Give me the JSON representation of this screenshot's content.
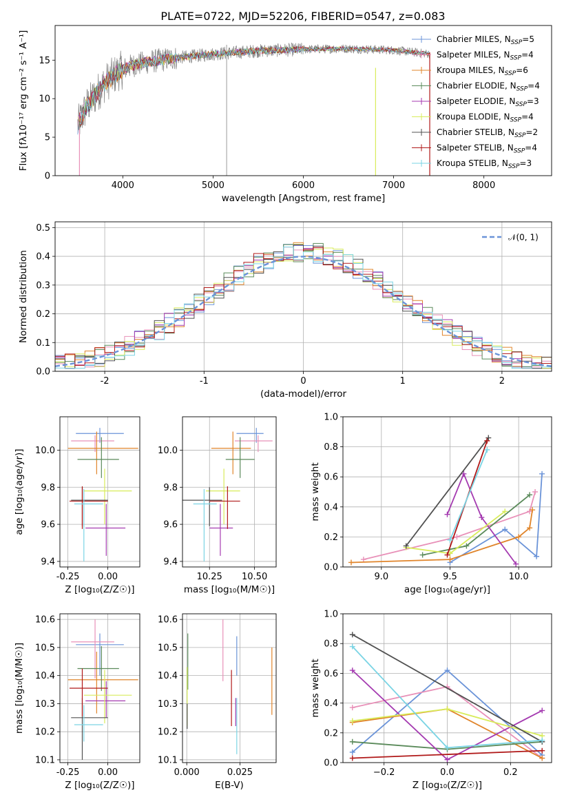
{
  "figure_title": "PLATE=0722, MJD=52206, FIBERID=0547, z=0.083",
  "colors": {
    "Chabrier MILES": "#6a93d8",
    "Salpeter MILES": "#e890b8",
    "Kroupa MILES": "#e0842a",
    "Chabrier ELODIE": "#5a8a5a",
    "Salpeter ELODIE": "#a43ab0",
    "Kroupa ELODIE": "#d8ec5a",
    "Chabrier STELIB": "#505050",
    "Salpeter STELIB": "#b01818",
    "Kroupa STELIB": "#7ad4e4",
    "data": "#808080",
    "normal": "#6a93d8"
  },
  "chart_data": [
    {
      "id": "spectrum",
      "type": "line",
      "title": "PLATE=0722, MJD=52206, FIBERID=0547, z=0.083",
      "xlabel": "wavelength [Angstrom, rest frame]",
      "ylabel": "Flux [fλ10⁻¹⁷ erg cm⁻² s⁻¹ A⁻¹]",
      "xlim": [
        3250,
        8750
      ],
      "ylim": [
        0,
        19.5
      ],
      "xticks": [
        4000,
        5000,
        6000,
        7000,
        8000
      ],
      "yticks": [
        0,
        5,
        10,
        15
      ],
      "legend_loc": "upper right",
      "legend": [
        "Chabrier MILES, N_SSP=5",
        "Salpeter MILES, N_SSP=4",
        "Kroupa MILES, N_SSP=6",
        "Chabrier ELODIE, N_SSP=4",
        "Salpeter ELODIE, N_SSP=3",
        "Kroupa ELODIE, N_SSP=4",
        "Chabrier STELIB, N_SSP=2",
        "Salpeter STELIB, N_SSP=4",
        "Kroupa STELIB, N_SSP=3"
      ],
      "continuum": [
        [
          3500,
          6.5
        ],
        [
          3600,
          9
        ],
        [
          3800,
          12
        ],
        [
          3950,
          13.5
        ],
        [
          4100,
          14.3
        ],
        [
          4300,
          14.8
        ],
        [
          4600,
          15.3
        ],
        [
          5000,
          15.8
        ],
        [
          5500,
          16.2
        ],
        [
          6000,
          16.4
        ],
        [
          6500,
          16.5
        ],
        [
          7000,
          16.3
        ],
        [
          7400,
          15.8
        ]
      ]
    },
    {
      "id": "residuals",
      "type": "histogram",
      "xlabel": "(data-model)/error",
      "ylabel": "Normed distribution",
      "xlim": [
        -2.5,
        2.5
      ],
      "ylim": [
        0,
        0.52
      ],
      "xticks": [
        -2,
        -1,
        0,
        1,
        2
      ],
      "yticks": [
        0.0,
        0.1,
        0.2,
        0.3,
        0.4,
        0.5
      ],
      "grid": true,
      "legend_loc": "upper right",
      "legend": [
        "𝒩(0, 1)"
      ],
      "bin_width": 0.1
    },
    {
      "id": "age-vs-Z",
      "type": "errorbar",
      "xlabel": "Z [log₁₀(Z/Z☉)]",
      "ylabel": "age  [log₁₀(age/yr)]",
      "xlim": [
        -0.3,
        0.2
      ],
      "ylim": [
        9.37,
        10.18
      ],
      "xticks": [
        -0.25,
        0.0
      ],
      "yticks": [
        9.4,
        9.6,
        9.8,
        10.0
      ],
      "points": [
        {
          "model": "Chabrier MILES",
          "x": -0.05,
          "xerr": [
            0.15,
            0.15
          ],
          "y": 10.09,
          "yerr": [
            0.05,
            0.03
          ]
        },
        {
          "model": "Salpeter MILES",
          "x": -0.08,
          "xerr": [
            0.15,
            0.12
          ],
          "y": 10.05,
          "yerr": [
            0.06,
            0.03
          ]
        },
        {
          "model": "Kroupa MILES",
          "x": -0.07,
          "xerr": [
            0.18,
            0.26
          ],
          "y": 10.01,
          "yerr": [
            0.14,
            0.09
          ]
        },
        {
          "model": "Chabrier ELODIE",
          "x": -0.04,
          "xerr": [
            0.15,
            0.11
          ],
          "y": 9.95,
          "yerr": [
            0.1,
            0.12
          ]
        },
        {
          "model": "Salpeter ELODIE",
          "x": -0.01,
          "xerr": [
            0.13,
            0.12
          ],
          "y": 9.58,
          "yerr": [
            0.15,
            0.13
          ]
        },
        {
          "model": "Kroupa ELODIE",
          "x": -0.02,
          "xerr": [
            0.13,
            0.17
          ],
          "y": 9.78,
          "yerr": [
            0.18,
            0.12
          ]
        },
        {
          "model": "Chabrier STELIB",
          "x": -0.16,
          "xerr": [
            0.07,
            0.16
          ],
          "y": 9.73,
          "yerr": [
            0.14,
            0.07
          ]
        },
        {
          "model": "Salpeter STELIB",
          "x": -0.16,
          "xerr": [
            0.08,
            0.16
          ],
          "y": 9.725,
          "yerr": [
            0.15,
            0.08
          ]
        },
        {
          "model": "Kroupa STELIB",
          "x": -0.15,
          "xerr": [
            0.06,
            0.12
          ],
          "y": 9.71,
          "yerr": [
            0.31,
            0.08
          ]
        }
      ]
    },
    {
      "id": "age-vs-mass",
      "type": "errorbar",
      "xlabel": "mass [log₁₀(M/M☉)]",
      "ylabel": "",
      "xlim": [
        10.1,
        10.62
      ],
      "ylim": [
        9.37,
        10.18
      ],
      "xticks": [
        10.25,
        10.5
      ],
      "yticks": [
        9.4,
        9.6,
        9.8,
        10.0
      ],
      "points": [
        {
          "model": "Chabrier MILES",
          "x": 10.51,
          "xerr": [
            0.11,
            0.04
          ],
          "y": 10.09,
          "yerr": [
            0.05,
            0.03
          ]
        },
        {
          "model": "Salpeter MILES",
          "x": 10.52,
          "xerr": [
            0.13,
            0.08
          ],
          "y": 10.05,
          "yerr": [
            0.06,
            0.03
          ]
        },
        {
          "model": "Kroupa MILES",
          "x": 10.38,
          "xerr": [
            0.12,
            0.1
          ],
          "y": 10.01,
          "yerr": [
            0.14,
            0.09
          ]
        },
        {
          "model": "Chabrier ELODIE",
          "x": 10.42,
          "xerr": [
            0.08,
            0.08
          ],
          "y": 9.95,
          "yerr": [
            0.1,
            0.12
          ]
        },
        {
          "model": "Salpeter ELODIE",
          "x": 10.31,
          "xerr": [
            0.06,
            0.07
          ],
          "y": 9.58,
          "yerr": [
            0.15,
            0.13
          ]
        },
        {
          "model": "Kroupa ELODIE",
          "x": 10.33,
          "xerr": [
            0.1,
            0.09
          ],
          "y": 9.78,
          "yerr": [
            0.18,
            0.12
          ]
        },
        {
          "model": "Chabrier STELIB",
          "x": 10.25,
          "xerr": [
            0.15,
            0.07
          ],
          "y": 9.73,
          "yerr": [
            0.14,
            0.07
          ]
        },
        {
          "model": "Salpeter STELIB",
          "x": 10.35,
          "xerr": [
            0.1,
            0.07
          ],
          "y": 9.725,
          "yerr": [
            0.15,
            0.08
          ]
        },
        {
          "model": "Kroupa STELIB",
          "x": 10.22,
          "xerr": [
            0.06,
            0.07
          ],
          "y": 9.71,
          "yerr": [
            0.31,
            0.08
          ]
        }
      ]
    },
    {
      "id": "weight-vs-age",
      "type": "line",
      "xlabel": "age  [log₁₀(age/yr)]",
      "ylabel": "mass weight",
      "xlim": [
        8.72,
        10.24
      ],
      "ylim": [
        0,
        1
      ],
      "xticks": [
        9.0,
        9.5,
        10.0
      ],
      "yticks": [
        0.0,
        0.2,
        0.4,
        0.6,
        0.8,
        1.0
      ],
      "grid": true,
      "series": [
        {
          "model": "Chabrier MILES",
          "x": [
            9.5,
            9.9,
            10.13,
            10.17
          ],
          "y": [
            0.03,
            0.25,
            0.07,
            0.62
          ]
        },
        {
          "model": "Salpeter MILES",
          "x": [
            8.87,
            9.55,
            10.08,
            10.12
          ],
          "y": [
            0.05,
            0.2,
            0.37,
            0.5
          ]
        },
        {
          "model": "Kroupa MILES",
          "x": [
            8.78,
            9.5,
            10.0,
            10.08,
            10.1
          ],
          "y": [
            0.03,
            0.05,
            0.2,
            0.26,
            0.38
          ]
        },
        {
          "model": "Chabrier ELODIE",
          "x": [
            9.3,
            9.62,
            10.08
          ],
          "y": [
            0.08,
            0.14,
            0.48
          ]
        },
        {
          "model": "Salpeter ELODIE",
          "x": [
            9.48,
            9.6,
            9.73,
            9.98
          ],
          "y": [
            0.35,
            0.62,
            0.33,
            0.02
          ]
        },
        {
          "model": "Kroupa ELODIE",
          "x": [
            9.18,
            9.5,
            9.9
          ],
          "y": [
            0.13,
            0.09,
            0.37
          ]
        },
        {
          "model": "Chabrier STELIB",
          "x": [
            9.18,
            9.78
          ],
          "y": [
            0.14,
            0.86
          ]
        },
        {
          "model": "Salpeter STELIB",
          "x": [
            9.48,
            9.77
          ],
          "y": [
            0.08,
            0.84
          ]
        },
        {
          "model": "Kroupa STELIB",
          "x": [
            9.5,
            9.77
          ],
          "y": [
            0.18,
            0.78
          ]
        }
      ]
    },
    {
      "id": "mass-vs-Z",
      "type": "errorbar",
      "xlabel": "Z [log₁₀(Z/Z☉)]",
      "ylabel": "mass [log₁₀(M/M☉)]",
      "xlim": [
        -0.3,
        0.2
      ],
      "ylim": [
        10.09,
        10.62
      ],
      "xticks": [
        -0.25,
        0.0
      ],
      "yticks": [
        10.1,
        10.2,
        10.3,
        10.4,
        10.5,
        10.6
      ],
      "points": [
        {
          "model": "Chabrier MILES",
          "x": -0.05,
          "xerr": [
            0.15,
            0.15
          ],
          "y": 10.51,
          "yerr": [
            0.11,
            0.04
          ]
        },
        {
          "model": "Salpeter MILES",
          "x": -0.08,
          "xerr": [
            0.15,
            0.12
          ],
          "y": 10.52,
          "yerr": [
            0.13,
            0.08
          ]
        },
        {
          "model": "Kroupa MILES",
          "x": -0.07,
          "xerr": [
            0.18,
            0.26
          ],
          "y": 10.385,
          "yerr": [
            0.12,
            0.1
          ]
        },
        {
          "model": "Chabrier ELODIE",
          "x": -0.04,
          "xerr": [
            0.15,
            0.11
          ],
          "y": 10.425,
          "yerr": [
            0.08,
            0.08
          ]
        },
        {
          "model": "Salpeter ELODIE",
          "x": -0.01,
          "xerr": [
            0.13,
            0.12
          ],
          "y": 10.31,
          "yerr": [
            0.06,
            0.07
          ]
        },
        {
          "model": "Kroupa ELODIE",
          "x": -0.02,
          "xerr": [
            0.13,
            0.17
          ],
          "y": 10.33,
          "yerr": [
            0.1,
            0.09
          ]
        },
        {
          "model": "Chabrier STELIB",
          "x": -0.16,
          "xerr": [
            0.07,
            0.16
          ],
          "y": 10.25,
          "yerr": [
            0.15,
            0.07
          ]
        },
        {
          "model": "Salpeter STELIB",
          "x": -0.16,
          "xerr": [
            0.08,
            0.16
          ],
          "y": 10.355,
          "yerr": [
            0.1,
            0.07
          ]
        },
        {
          "model": "Kroupa STELIB",
          "x": -0.15,
          "xerr": [
            0.06,
            0.12
          ],
          "y": 10.225,
          "yerr": [
            0.06,
            0.07
          ]
        }
      ]
    },
    {
      "id": "mass-vs-EBV",
      "type": "errorbar",
      "xlabel": "E(B-V)",
      "ylabel": "",
      "xlim": [
        -0.002,
        0.042
      ],
      "ylim": [
        10.09,
        10.62
      ],
      "xticks": [
        0.0,
        0.025
      ],
      "yticks": [
        10.1,
        10.2,
        10.3,
        10.4,
        10.5,
        10.6
      ],
      "points": [
        {
          "model": "Chabrier MILES",
          "x": 0.0235,
          "y": 10.51,
          "yerr": [
            0.11,
            0.03
          ]
        },
        {
          "model": "Salpeter MILES",
          "x": 0.017,
          "y": 10.52,
          "yerr": [
            0.14,
            0.08
          ]
        },
        {
          "model": "Kroupa MILES",
          "x": 0.04,
          "y": 10.38,
          "yerr": [
            0.12,
            0.12
          ]
        },
        {
          "model": "Chabrier ELODIE",
          "x": 0.0005,
          "y": 10.43,
          "yerr": [
            0.08,
            0.12
          ]
        },
        {
          "model": "Salpeter ELODIE",
          "x": 0.023,
          "y": 10.28,
          "yerr": [
            0.06,
            0.04
          ]
        },
        {
          "model": "Kroupa ELODIE",
          "x": 0.0002,
          "y": 10.33,
          "yerr": [
            0.11,
            0.1
          ]
        },
        {
          "model": "Chabrier STELIB",
          "x": 0.0002,
          "y": 10.25,
          "yerr": [
            0.04,
            0.05
          ]
        },
        {
          "model": "Salpeter STELIB",
          "x": 0.021,
          "y": 10.32,
          "yerr": [
            0.1,
            0.1
          ]
        },
        {
          "model": "Kroupa STELIB",
          "x": 0.0235,
          "y": 10.22,
          "yerr": [
            0.1,
            0.1
          ]
        }
      ]
    },
    {
      "id": "weight-vs-Z",
      "type": "line",
      "xlabel": "Z [log₁₀(Z/Z☉)]",
      "ylabel": "mass weight",
      "xlim": [
        -0.33,
        0.33
      ],
      "ylim": [
        0,
        1
      ],
      "xticks": [
        -0.2,
        0.0,
        0.2
      ],
      "yticks": [
        0.0,
        0.2,
        0.4,
        0.6,
        0.8,
        1.0
      ],
      "grid": true,
      "series": [
        {
          "model": "Chabrier MILES",
          "x": [
            -0.3,
            0.0,
            0.3
          ],
          "y": [
            0.07,
            0.62,
            0.05
          ]
        },
        {
          "model": "Salpeter MILES",
          "x": [
            -0.3,
            0.0,
            0.3
          ],
          "y": [
            0.37,
            0.51,
            0.03
          ]
        },
        {
          "model": "Kroupa MILES",
          "x": [
            -0.3,
            0.0,
            0.3
          ],
          "y": [
            0.27,
            0.36,
            0.03
          ]
        },
        {
          "model": "Chabrier ELODIE",
          "x": [
            -0.3,
            0.0,
            0.3
          ],
          "y": [
            0.14,
            0.09,
            0.14
          ]
        },
        {
          "model": "Salpeter ELODIE",
          "x": [
            -0.3,
            0.0,
            0.3
          ],
          "y": [
            0.62,
            0.02,
            0.35
          ]
        },
        {
          "model": "Kroupa ELODIE",
          "x": [
            -0.3,
            0.0,
            0.3
          ],
          "y": [
            0.28,
            0.36,
            0.18
          ]
        },
        {
          "model": "Chabrier STELIB",
          "x": [
            -0.3,
            0.3
          ],
          "y": [
            0.86,
            0.14
          ]
        },
        {
          "model": "Salpeter STELIB",
          "x": [
            -0.3,
            0.3
          ],
          "y": [
            0.03,
            0.08
          ]
        },
        {
          "model": "Kroupa STELIB",
          "x": [
            -0.3,
            0.0,
            0.3
          ],
          "y": [
            0.78,
            0.1,
            0.15
          ]
        }
      ]
    }
  ]
}
